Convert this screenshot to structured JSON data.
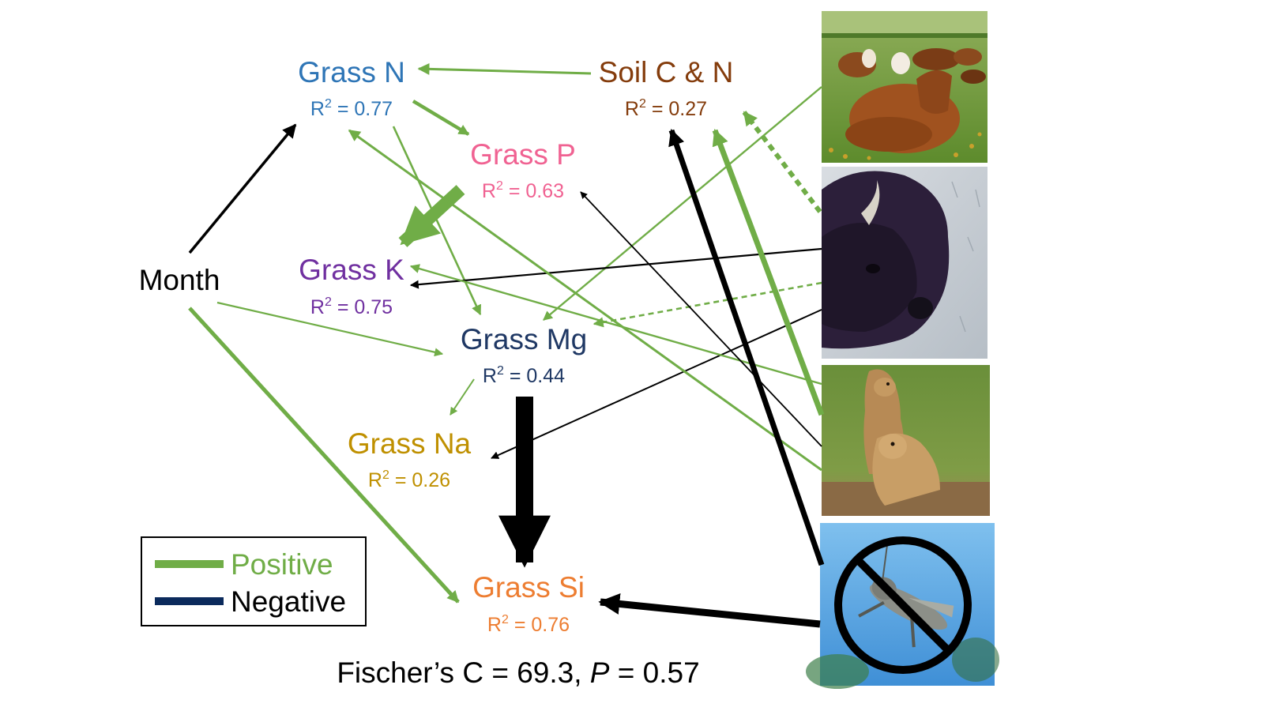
{
  "colors": {
    "positive": "#70ad47",
    "negative": "#000000",
    "legend_negative": "#0b2a5c",
    "grass_n": "#2e75b6",
    "soil": "#843c0c",
    "grass_p": "#f06292",
    "grass_k": "#7030a0",
    "grass_mg": "#1f3864",
    "grass_na": "#bf9000",
    "grass_si": "#ed7d31",
    "month": "#000000"
  },
  "nodes": {
    "grass_n": {
      "name": "Grass N",
      "r2": "0.77"
    },
    "soil": {
      "name": "Soil C & N",
      "r2": "0.27"
    },
    "grass_p": {
      "name": "Grass P",
      "r2": "0.63"
    },
    "grass_k": {
      "name": "Grass K",
      "r2": "0.75"
    },
    "month": {
      "name": "Month"
    },
    "grass_mg": {
      "name": "Grass Mg",
      "r2": "0.44"
    },
    "grass_na": {
      "name": "Grass Na",
      "r2": "0.26"
    },
    "grass_si": {
      "name": "Grass Si",
      "r2": "0.76"
    }
  },
  "r2_prefix": "R",
  "r2_sup": "2",
  "r2_eq": " = ",
  "legend": {
    "positive": "Positive",
    "negative": "Negative"
  },
  "fit": {
    "prefix": "Fischer’s C = 69.3, ",
    "p_symbol": "P",
    "suffix": " = 0.57"
  },
  "photos": [
    {
      "subject": "cattle",
      "icon": "cattle-photo"
    },
    {
      "subject": "bison",
      "icon": "bison-photo"
    },
    {
      "subject": "prairie dogs",
      "icon": "prairie-dog-photo"
    },
    {
      "subject": "no grasshoppers",
      "icon": "no-grasshopper-photo"
    }
  ]
}
